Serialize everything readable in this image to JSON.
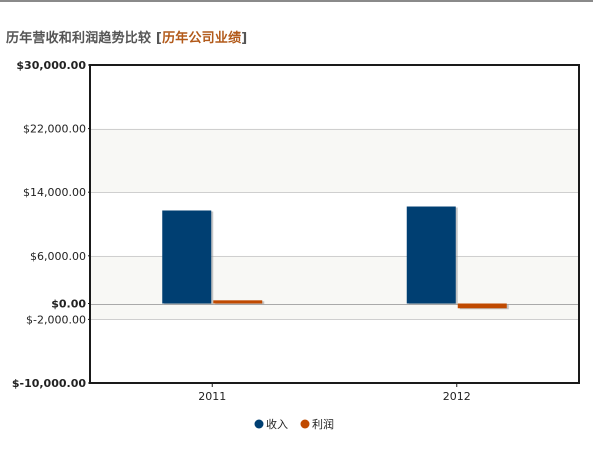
{
  "heading": {
    "title": "历年营收和利润趋势比较",
    "bracket_open": " [",
    "link_label": "历年公司业绩",
    "bracket_close": "]"
  },
  "colors": {
    "revenue": "#003f72",
    "profit": "#c04a00",
    "band": "#f8f8f5",
    "gridline": "#cfcfcf",
    "frame": "#1a1a1a"
  },
  "chart_data": {
    "type": "bar",
    "categories": [
      "2011",
      "2012"
    ],
    "series": [
      {
        "name": "收入",
        "values": [
          11700,
          12200
        ]
      },
      {
        "name": "利润",
        "values": [
          400,
          -600
        ]
      }
    ],
    "ylim": [
      -10000,
      30000
    ],
    "yticks": [
      {
        "value": 30000,
        "label": "$30,000.00",
        "bold": true
      },
      {
        "value": 22000,
        "label": "$22,000.00",
        "bold": false
      },
      {
        "value": 14000,
        "label": "$14,000.00",
        "bold": false
      },
      {
        "value": 6000,
        "label": "$6,000.00",
        "bold": false
      },
      {
        "value": 0,
        "label": "$0.00",
        "bold": true
      },
      {
        "value": -2000,
        "label": "$-2,000.00",
        "bold": false
      },
      {
        "value": -10000,
        "label": "$-10,000.00",
        "bold": true
      }
    ],
    "bands": [
      [
        14000,
        22000
      ],
      [
        -2000,
        6000
      ]
    ],
    "legend_position": "bottom-center",
    "grid": true
  }
}
